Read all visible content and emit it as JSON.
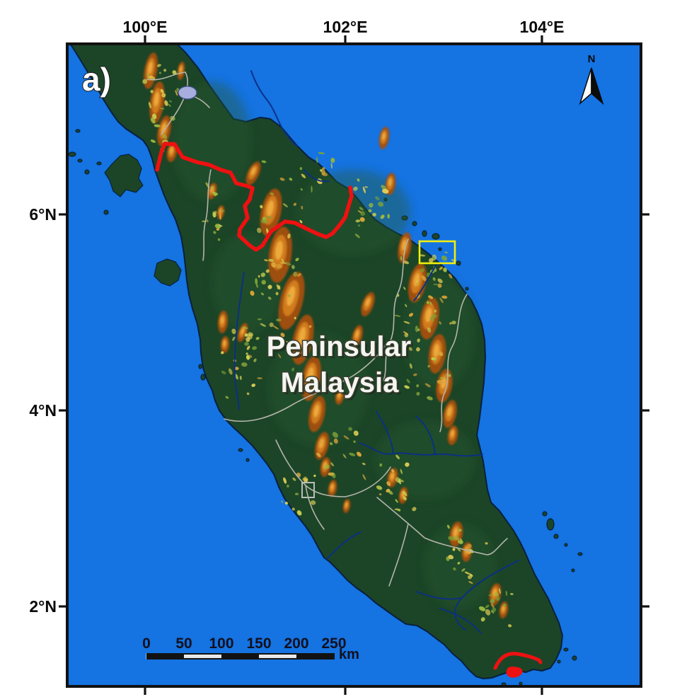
{
  "figure": {
    "panel_label": "a)",
    "region_label_line1": "Peninsular",
    "region_label_line2": "Malaysia"
  },
  "axes": {
    "top": [
      {
        "label": "100°E"
      },
      {
        "label": "102°E"
      },
      {
        "label": "104°E"
      }
    ],
    "left": [
      {
        "label": "6°N"
      },
      {
        "label": "4°N"
      },
      {
        "label": "2°N"
      }
    ]
  },
  "scale_bar": {
    "ticks": [
      "0",
      "50",
      "100",
      "150",
      "200",
      "250"
    ],
    "unit": "km"
  },
  "north_arrow": {
    "label": "N"
  },
  "colors": {
    "ocean": "#1573e2",
    "land": "#1c4527",
    "highland_orange": "#c06a1d",
    "thailand_border_red": "#ee1111",
    "singapore_border_red": "#ee1111",
    "study_area_box_yellow": "#f2ef0c",
    "state_boundary_gray": "#b4b4aa",
    "river_blue": "#0b2f85"
  }
}
